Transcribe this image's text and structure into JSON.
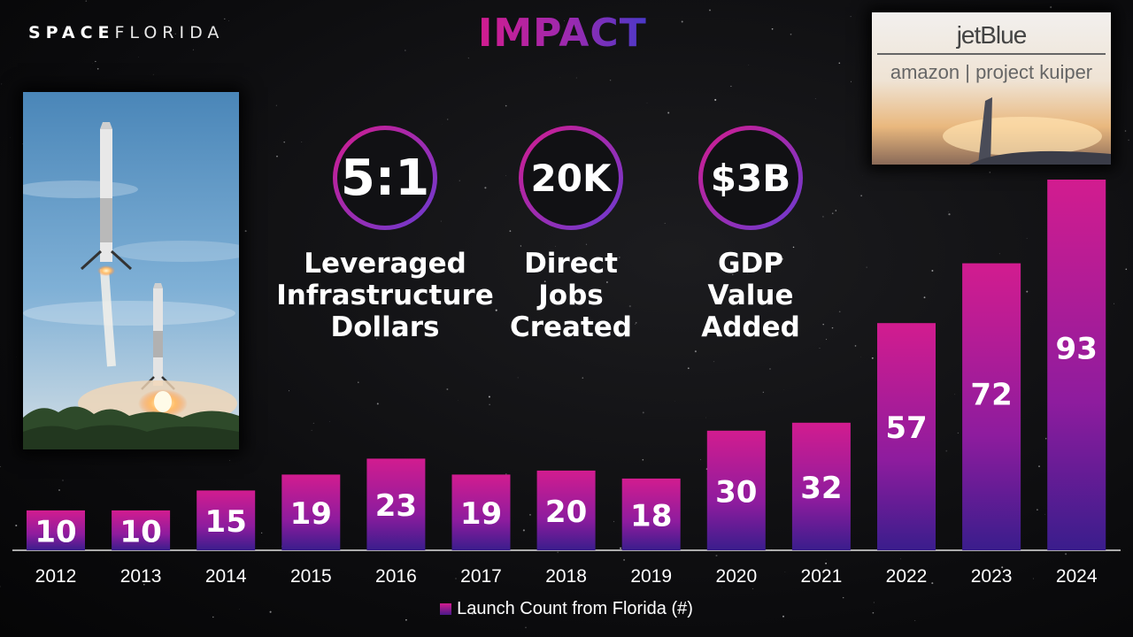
{
  "header": {
    "logo_bold": "SPACE",
    "logo_light": "FLORIDA",
    "title": "IMPACT"
  },
  "partners": {
    "primary": "jetBlue",
    "secondary": "amazon | project kuiper"
  },
  "stats": [
    {
      "value": "5:1",
      "label_lines": [
        "Leveraged",
        "Infrastructure",
        "Dollars"
      ]
    },
    {
      "value": "20K",
      "label_lines": [
        "Direct",
        "Jobs",
        "Created"
      ]
    },
    {
      "value": "$3B",
      "label_lines": [
        "GDP",
        "Value",
        "Added"
      ]
    }
  ],
  "colors": {
    "bar_top": "#d21c8f",
    "bar_bottom": "#3a1d8c",
    "accent": "#d21c8f"
  },
  "chart_data": {
    "type": "bar",
    "categories": [
      "2012",
      "2013",
      "2014",
      "2015",
      "2016",
      "2017",
      "2018",
      "2019",
      "2020",
      "2021",
      "2022",
      "2023",
      "2024"
    ],
    "values": [
      10,
      10,
      15,
      19,
      23,
      19,
      20,
      18,
      30,
      32,
      57,
      72,
      93
    ],
    "legend": "Launch Count from Florida (#)",
    "ylim": [
      0,
      93
    ],
    "grid": false,
    "legend_placement": "bottom-center"
  }
}
